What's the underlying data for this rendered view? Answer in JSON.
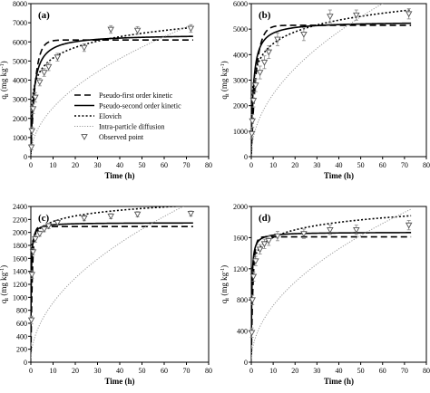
{
  "chart_data": [
    {
      "type": "line",
      "panel_label": "(a)",
      "title": "",
      "xlabel": "Time (h)",
      "ylabel_main": "q",
      "ylabel_sub": "t",
      "ylabel_unit": " (mg kg",
      "ylabel_exp": "-1",
      "ylabel_close": ")",
      "xlim": [
        0,
        80
      ],
      "ylim": [
        0,
        8000
      ],
      "xticks": [
        "0",
        "10",
        "20",
        "30",
        "40",
        "50",
        "60",
        "70",
        "80"
      ],
      "yticks": [
        "0",
        "1000",
        "2000",
        "3000",
        "4000",
        "5000",
        "6000",
        "7000",
        "8000"
      ],
      "legend": {
        "placement": "bottom-right",
        "entries": [
          "Pseudo-first order kinetic",
          "Pseudo-second order kinetic",
          "Elovich",
          "Intra-particle diffusion",
          "Observed point"
        ]
      },
      "models": {
        "pfo": {
          "qe": 6100,
          "k": 0.5
        },
        "pso": {
          "qe": 6400,
          "k2": 0.00012
        },
        "elovich": {
          "a": 3300,
          "b": 805
        },
        "ipd": {
          "kid": 810,
          "c": 0
        }
      },
      "observed": {
        "x": [
          0.25,
          0.5,
          1,
          2,
          4,
          6,
          8,
          12,
          24,
          36,
          48,
          72
        ],
        "y": [
          500,
          1350,
          2500,
          3100,
          3900,
          4400,
          4700,
          5200,
          5700,
          6650,
          6600,
          6700
        ],
        "err": [
          150,
          200,
          250,
          250,
          200,
          200,
          200,
          200,
          200,
          200,
          200,
          200
        ]
      }
    },
    {
      "type": "line",
      "panel_label": "(b)",
      "title": "",
      "xlabel": "Time (h)",
      "ylabel_main": "q",
      "ylabel_sub": "t",
      "ylabel_unit": " (mg kg",
      "ylabel_exp": "-1",
      "ylabel_close": ")",
      "xlim": [
        0,
        80
      ],
      "ylim": [
        0,
        6000
      ],
      "xticks": [
        "0",
        "10",
        "20",
        "30",
        "40",
        "50",
        "60",
        "70",
        "80"
      ],
      "yticks": [
        "0",
        "1000",
        "2000",
        "3000",
        "4000",
        "5000",
        "6000"
      ],
      "models": {
        "pfo": {
          "qe": 5150,
          "k": 0.45
        },
        "pso": {
          "qe": 5300,
          "k2": 0.0002
        },
        "elovich": {
          "a": 2900,
          "b": 665
        },
        "ipd": {
          "kid": 775,
          "c": 0
        }
      },
      "observed": {
        "x": [
          0.25,
          0.5,
          1,
          2,
          4,
          6,
          8,
          12,
          24,
          36,
          48,
          72
        ],
        "y": [
          900,
          1400,
          2200,
          2800,
          3300,
          3700,
          4100,
          4600,
          4800,
          5500,
          5550,
          5600
        ],
        "err": [
          200,
          250,
          250,
          250,
          250,
          250,
          250,
          250,
          250,
          250,
          200,
          200
        ]
      }
    },
    {
      "type": "line",
      "panel_label": "(c)",
      "title": "",
      "xlabel": "Time (h)",
      "ylabel_main": "q",
      "ylabel_sub": "t",
      "ylabel_unit": " (mg kg",
      "ylabel_exp": "-1",
      "ylabel_close": ")",
      "xlim": [
        0,
        80
      ],
      "ylim": [
        0,
        2400
      ],
      "xticks": [
        "0",
        "10",
        "20",
        "30",
        "40",
        "50",
        "60",
        "70",
        "80"
      ],
      "yticks": [
        "0",
        "200",
        "400",
        "600",
        "800",
        "1000",
        "1200",
        "1400",
        "1600",
        "1800",
        "2000",
        "2200",
        "2400"
      ],
      "models": {
        "pfo": {
          "qe": 2090,
          "k": 1.5
        },
        "pso": {
          "qe": 2150,
          "k2": 0.003
        },
        "elovich": {
          "a": 1880,
          "b": 125
        },
        "ipd": {
          "kid": 290,
          "c": 0
        }
      },
      "observed": {
        "x": [
          0.25,
          0.5,
          1,
          2,
          4,
          6,
          8,
          12,
          24,
          36,
          48,
          72
        ],
        "y": [
          650,
          1350,
          1700,
          1900,
          1980,
          2050,
          2100,
          2150,
          2220,
          2250,
          2280,
          2290
        ],
        "err": [
          60,
          60,
          50,
          50,
          40,
          40,
          40,
          40,
          40,
          40,
          40,
          40
        ]
      }
    },
    {
      "type": "line",
      "panel_label": "(d)",
      "title": "",
      "xlabel": "Time (h)",
      "ylabel_main": "q",
      "ylabel_sub": "t",
      "ylabel_unit": " (mg kg",
      "ylabel_exp": "-1",
      "ylabel_close": ")",
      "xlim": [
        0,
        80
      ],
      "ylim": [
        0,
        2000
      ],
      "xticks": [
        "0",
        "10",
        "20",
        "30",
        "40",
        "50",
        "60",
        "70",
        "80"
      ],
      "yticks": [
        "0",
        "400",
        "800",
        "1200",
        "1600",
        "2000"
      ],
      "models": {
        "pfo": {
          "qe": 1610,
          "k": 1.2
        },
        "pso": {
          "qe": 1670,
          "k2": 0.0025
        },
        "elovich": {
          "a": 1280,
          "b": 140
        },
        "ipd": {
          "kid": 230,
          "c": 0
        }
      },
      "observed": {
        "x": [
          0.25,
          0.5,
          1,
          2,
          4,
          6,
          8,
          12,
          24,
          36,
          48,
          72
        ],
        "y": [
          380,
          800,
          1100,
          1300,
          1450,
          1520,
          1560,
          1620,
          1650,
          1700,
          1700,
          1760
        ],
        "err": [
          60,
          60,
          60,
          60,
          60,
          60,
          60,
          60,
          60,
          60,
          60,
          60
        ]
      }
    }
  ]
}
